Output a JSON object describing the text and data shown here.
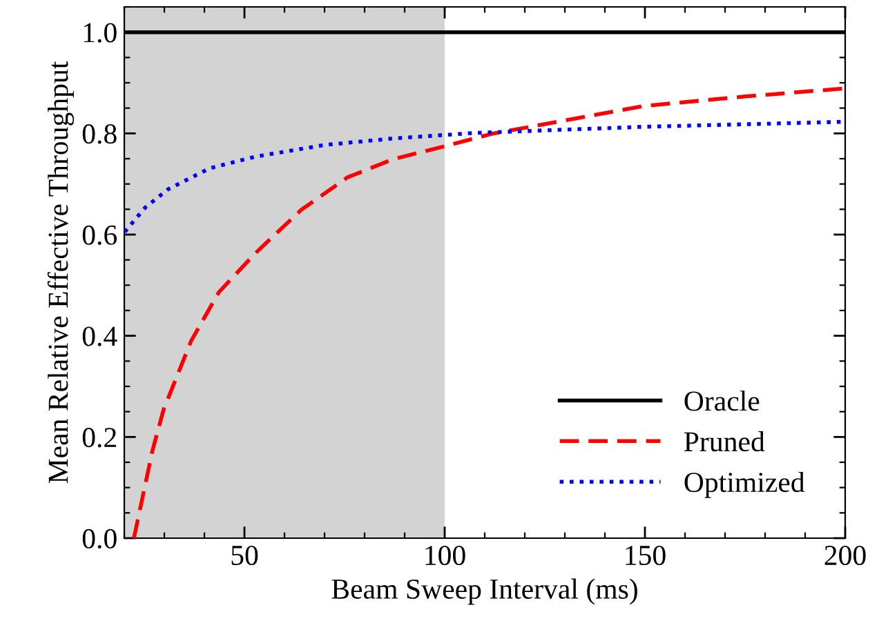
{
  "chart_data": {
    "type": "line",
    "xlabel": "Beam Sweep Interval (ms)",
    "ylabel": "Mean Relative Effective Throughput",
    "xlim": [
      20,
      200
    ],
    "ylim": [
      0,
      1.05
    ],
    "xticks": [
      50,
      100,
      150,
      200
    ],
    "yticks": [
      {
        "value": 0,
        "label": "0.0"
      },
      0.2,
      0.4,
      0.6,
      0.8,
      {
        "value": 1,
        "label": "1.0"
      }
    ],
    "grid": false,
    "legend": "bottom right",
    "bands": [
      {
        "axis": "x",
        "from": 20,
        "to": 100,
        "color": "#d3d3d3"
      }
    ],
    "series": [
      {
        "name": "Oracle",
        "color": "#000000",
        "line_style": "solid",
        "x": [
          20,
          200
        ],
        "values": [
          1.0,
          1.0
        ]
      },
      {
        "name": "Pruned",
        "color": "#ff0000",
        "line_style": "dashed",
        "x": [
          22.4,
          27,
          29.8,
          36.7,
          43.6,
          52.7,
          64.2,
          75.7,
          87.1,
          99.7,
          111.7,
          149.5,
          175,
          200
        ],
        "values": [
          0.0,
          0.172,
          0.254,
          0.39,
          0.486,
          0.563,
          0.649,
          0.713,
          0.749,
          0.774,
          0.799,
          0.854,
          0.873,
          0.889
        ]
      },
      {
        "name": "Optimized",
        "color": "#0000ff",
        "line_style": "dotted",
        "x": [
          20.1,
          22.4,
          25.3,
          31,
          41.3,
          52.7,
          69.9,
          87.1,
          107.7,
          149.5,
          200
        ],
        "values": [
          0.605,
          0.627,
          0.654,
          0.69,
          0.731,
          0.754,
          0.777,
          0.79,
          0.801,
          0.813,
          0.823
        ]
      }
    ]
  }
}
